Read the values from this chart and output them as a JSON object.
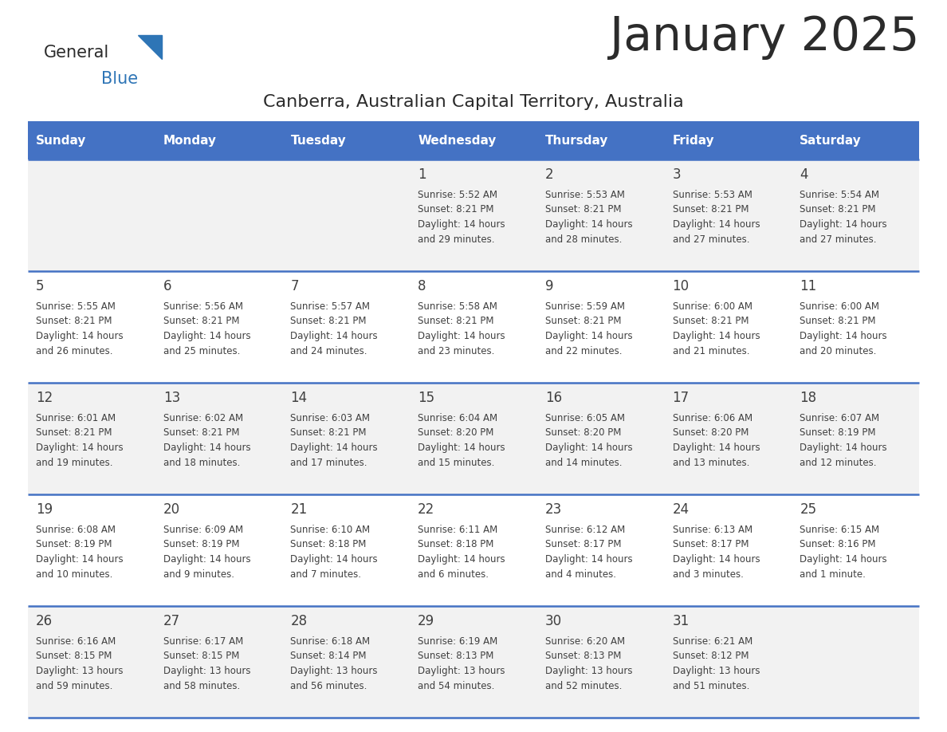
{
  "title": "January 2025",
  "subtitle": "Canberra, Australian Capital Territory, Australia",
  "header_bg_color": "#4472C4",
  "header_text_color": "#FFFFFF",
  "cell_bg_even": "#F2F2F2",
  "cell_bg_odd": "#FFFFFF",
  "day_headers": [
    "Sunday",
    "Monday",
    "Tuesday",
    "Wednesday",
    "Thursday",
    "Friday",
    "Saturday"
  ],
  "weeks": [
    [
      {
        "day": null,
        "info": null
      },
      {
        "day": null,
        "info": null
      },
      {
        "day": null,
        "info": null
      },
      {
        "day": 1,
        "info": "Sunrise: 5:52 AM\nSunset: 8:21 PM\nDaylight: 14 hours\nand 29 minutes."
      },
      {
        "day": 2,
        "info": "Sunrise: 5:53 AM\nSunset: 8:21 PM\nDaylight: 14 hours\nand 28 minutes."
      },
      {
        "day": 3,
        "info": "Sunrise: 5:53 AM\nSunset: 8:21 PM\nDaylight: 14 hours\nand 27 minutes."
      },
      {
        "day": 4,
        "info": "Sunrise: 5:54 AM\nSunset: 8:21 PM\nDaylight: 14 hours\nand 27 minutes."
      }
    ],
    [
      {
        "day": 5,
        "info": "Sunrise: 5:55 AM\nSunset: 8:21 PM\nDaylight: 14 hours\nand 26 minutes."
      },
      {
        "day": 6,
        "info": "Sunrise: 5:56 AM\nSunset: 8:21 PM\nDaylight: 14 hours\nand 25 minutes."
      },
      {
        "day": 7,
        "info": "Sunrise: 5:57 AM\nSunset: 8:21 PM\nDaylight: 14 hours\nand 24 minutes."
      },
      {
        "day": 8,
        "info": "Sunrise: 5:58 AM\nSunset: 8:21 PM\nDaylight: 14 hours\nand 23 minutes."
      },
      {
        "day": 9,
        "info": "Sunrise: 5:59 AM\nSunset: 8:21 PM\nDaylight: 14 hours\nand 22 minutes."
      },
      {
        "day": 10,
        "info": "Sunrise: 6:00 AM\nSunset: 8:21 PM\nDaylight: 14 hours\nand 21 minutes."
      },
      {
        "day": 11,
        "info": "Sunrise: 6:00 AM\nSunset: 8:21 PM\nDaylight: 14 hours\nand 20 minutes."
      }
    ],
    [
      {
        "day": 12,
        "info": "Sunrise: 6:01 AM\nSunset: 8:21 PM\nDaylight: 14 hours\nand 19 minutes."
      },
      {
        "day": 13,
        "info": "Sunrise: 6:02 AM\nSunset: 8:21 PM\nDaylight: 14 hours\nand 18 minutes."
      },
      {
        "day": 14,
        "info": "Sunrise: 6:03 AM\nSunset: 8:21 PM\nDaylight: 14 hours\nand 17 minutes."
      },
      {
        "day": 15,
        "info": "Sunrise: 6:04 AM\nSunset: 8:20 PM\nDaylight: 14 hours\nand 15 minutes."
      },
      {
        "day": 16,
        "info": "Sunrise: 6:05 AM\nSunset: 8:20 PM\nDaylight: 14 hours\nand 14 minutes."
      },
      {
        "day": 17,
        "info": "Sunrise: 6:06 AM\nSunset: 8:20 PM\nDaylight: 14 hours\nand 13 minutes."
      },
      {
        "day": 18,
        "info": "Sunrise: 6:07 AM\nSunset: 8:19 PM\nDaylight: 14 hours\nand 12 minutes."
      }
    ],
    [
      {
        "day": 19,
        "info": "Sunrise: 6:08 AM\nSunset: 8:19 PM\nDaylight: 14 hours\nand 10 minutes."
      },
      {
        "day": 20,
        "info": "Sunrise: 6:09 AM\nSunset: 8:19 PM\nDaylight: 14 hours\nand 9 minutes."
      },
      {
        "day": 21,
        "info": "Sunrise: 6:10 AM\nSunset: 8:18 PM\nDaylight: 14 hours\nand 7 minutes."
      },
      {
        "day": 22,
        "info": "Sunrise: 6:11 AM\nSunset: 8:18 PM\nDaylight: 14 hours\nand 6 minutes."
      },
      {
        "day": 23,
        "info": "Sunrise: 6:12 AM\nSunset: 8:17 PM\nDaylight: 14 hours\nand 4 minutes."
      },
      {
        "day": 24,
        "info": "Sunrise: 6:13 AM\nSunset: 8:17 PM\nDaylight: 14 hours\nand 3 minutes."
      },
      {
        "day": 25,
        "info": "Sunrise: 6:15 AM\nSunset: 8:16 PM\nDaylight: 14 hours\nand 1 minute."
      }
    ],
    [
      {
        "day": 26,
        "info": "Sunrise: 6:16 AM\nSunset: 8:15 PM\nDaylight: 13 hours\nand 59 minutes."
      },
      {
        "day": 27,
        "info": "Sunrise: 6:17 AM\nSunset: 8:15 PM\nDaylight: 13 hours\nand 58 minutes."
      },
      {
        "day": 28,
        "info": "Sunrise: 6:18 AM\nSunset: 8:14 PM\nDaylight: 13 hours\nand 56 minutes."
      },
      {
        "day": 29,
        "info": "Sunrise: 6:19 AM\nSunset: 8:13 PM\nDaylight: 13 hours\nand 54 minutes."
      },
      {
        "day": 30,
        "info": "Sunrise: 6:20 AM\nSunset: 8:13 PM\nDaylight: 13 hours\nand 52 minutes."
      },
      {
        "day": 31,
        "info": "Sunrise: 6:21 AM\nSunset: 8:12 PM\nDaylight: 13 hours\nand 51 minutes."
      },
      {
        "day": null,
        "info": null
      }
    ]
  ],
  "logo_general_color": "#2B2B2B",
  "logo_blue_color": "#2E75B6",
  "logo_triangle_color": "#2E75B6",
  "divider_color": "#4472C4",
  "text_color": "#404040",
  "title_color": "#2B2B2B",
  "subtitle_color": "#2B2B2B",
  "title_fontsize": 42,
  "subtitle_fontsize": 16,
  "header_fontsize": 11,
  "day_num_fontsize": 12,
  "info_fontsize": 8.5
}
